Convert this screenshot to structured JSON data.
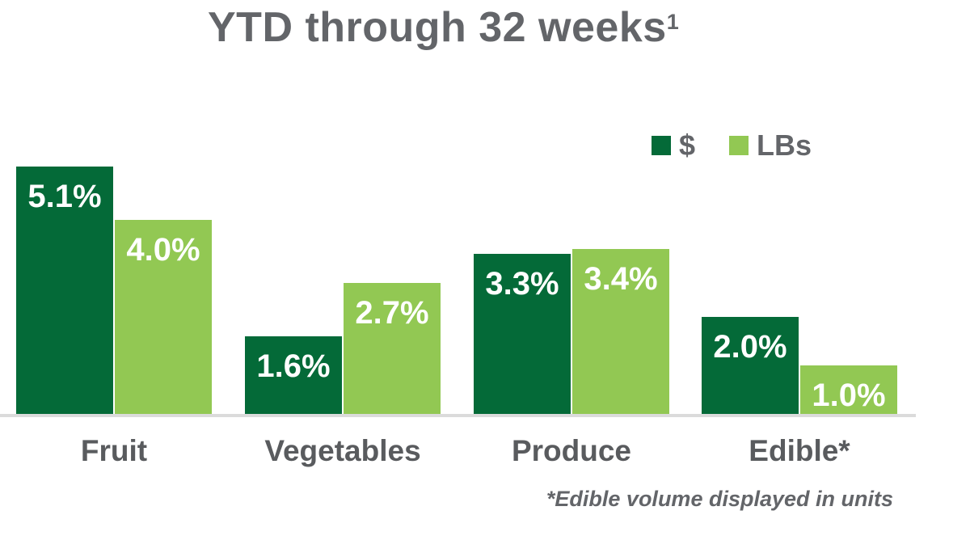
{
  "title": {
    "text": "YTD through 32 weeks",
    "superscript": "1"
  },
  "legend": {
    "items": [
      {
        "label": "$",
        "color": "#046A38"
      },
      {
        "label": "LBs",
        "color": "#92C853"
      }
    ]
  },
  "chart_data": {
    "type": "bar",
    "title": "YTD through 32 weeks (footnote 1)",
    "categories": [
      "Fruit",
      "Vegetables",
      "Produce",
      "Edible*"
    ],
    "series": [
      {
        "name": "$",
        "color": "#046A38",
        "values": [
          5.1,
          1.6,
          3.3,
          2.0
        ],
        "labels": [
          "5.1%",
          "1.6%",
          "3.3%",
          "2.0%"
        ]
      },
      {
        "name": "LBs",
        "color": "#92C853",
        "values": [
          4.0,
          2.7,
          3.4,
          1.0
        ],
        "labels": [
          "4.0%",
          "2.7%",
          "3.4%",
          "1.0%"
        ]
      }
    ],
    "unit": "%",
    "ylim": [
      0,
      5.5
    ],
    "grid": false,
    "y_axis_visible": false,
    "legend_position": "top-right",
    "value_label_position": "inside-top",
    "annotations": [
      "*Edible volume displayed in units"
    ]
  },
  "footnote": {
    "text": "*Edible volume displayed in units"
  },
  "colors": {
    "title_text": "#636569",
    "category_text": "#595B5E",
    "value_label_text": "#FFFFFF",
    "axis_line": "#DBDBDB",
    "background": "#FFFFFF"
  }
}
